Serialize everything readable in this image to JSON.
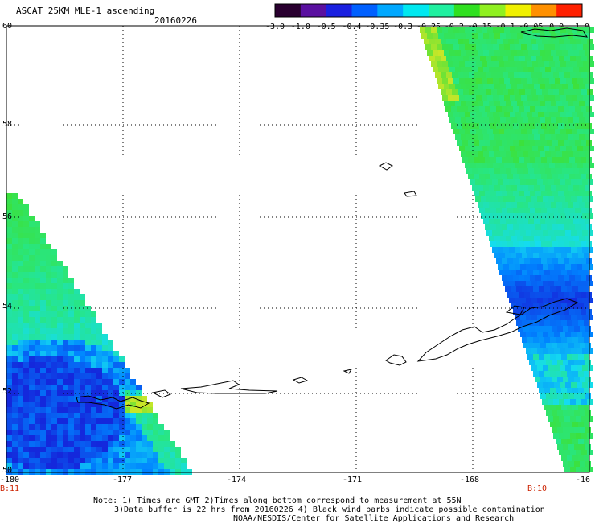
{
  "header": {
    "title": "ASCAT 25KM MLE-1 ascending",
    "date": "20160226"
  },
  "colorbar": {
    "labels": [
      "-3.0",
      "-1.0",
      "-0.5",
      "-0.4",
      "-0.35",
      "-0.3",
      "-0.25",
      "-0.2",
      "-0.15",
      "-0.1",
      "-0.05",
      "0.0",
      "1.0"
    ],
    "colors": [
      "#2a0030",
      "#5a10a0",
      "#1a20e0",
      "#0060ff",
      "#00a8ff",
      "#00e8f0",
      "#20f0a0",
      "#30e020",
      "#90f020",
      "#f0f000",
      "#ff9000",
      "#ff2000"
    ]
  },
  "map": {
    "lat_labels": [
      "60",
      "58",
      "56",
      "54",
      "52",
      "50"
    ],
    "lon_labels": [
      "-180",
      "-177",
      "-174",
      "-171",
      "-168",
      "-16"
    ],
    "time_left": "B:11",
    "time_right": "B:10"
  },
  "footer": {
    "line1": "Note: 1) Times are GMT 2)Times along bottom correspond to measurement at 55N",
    "line2": "3)Data buffer is 22 hrs from 20160226 4) Black wind barbs indicate possible contamination",
    "line3": "NOAA/NESDIS/Center for Satellite Applications and Research"
  }
}
